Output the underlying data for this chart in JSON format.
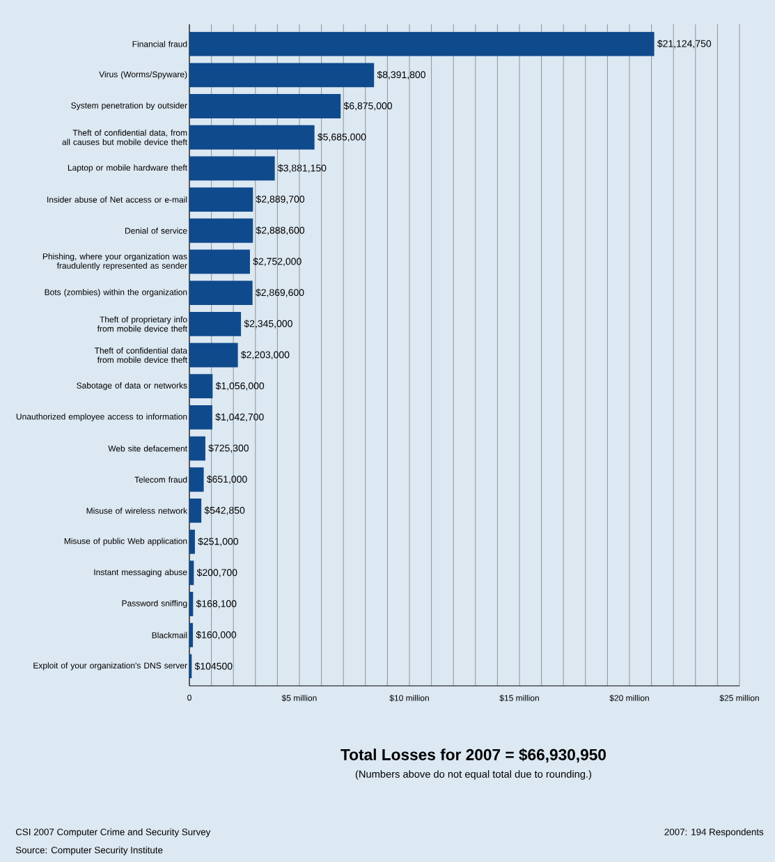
{
  "chart_data": {
    "type": "bar",
    "orientation": "horizontal",
    "categories": [
      "Financial fraud",
      "Virus (Worms/Spyware)",
      "System penetration by outsider",
      "Theft of confidential data, from all causes but mobile device theft",
      "Laptop or mobile hardware theft",
      "Insider abuse of Net access or e-mail",
      "Denial of service",
      "Phishing, where your organization was fraudulently represented as sender",
      "Bots (zombies) within the organization",
      "Theft of proprietary info from mobile device theft",
      "Theft of confidential data from mobile device theft",
      "Sabotage of data or networks",
      "Unauthorized employee access to information",
      "Web site defacement",
      "Telecom fraud",
      "Misuse of wireless network",
      "Misuse of public Web application",
      "Instant messaging abuse",
      "Password sniffing",
      "Blackmail",
      "Exploit of your organization's DNS server"
    ],
    "values": [
      21124750,
      8391800,
      6875000,
      5685000,
      3881150,
      2889700,
      2888600,
      2752000,
      2869600,
      2345000,
      2203000,
      1056000,
      1042700,
      725300,
      651000,
      542850,
      251000,
      200700,
      168100,
      160000,
      104500
    ],
    "value_labels": [
      "$21,124,750",
      "$8,391,800",
      "$6,875,000",
      "$5,685,000",
      "$3,881,150",
      "$2,889,700",
      "$2,888,600",
      "$2,752,000",
      "$2,869,600",
      "$2,345,000",
      "$2,203,000",
      "$1,056,000",
      "$1,042,700",
      "$725,300",
      "$651,000",
      "$542,850",
      "$251,000",
      "$200,700",
      "$168,100",
      "$160,000",
      "$104500"
    ],
    "color": "#0f4a8c",
    "xlim": [
      0,
      25000000
    ],
    "xticks": [
      0,
      {
        "value": 1000000,
        "label": null
      },
      {
        "value": 2000000,
        "label": null
      },
      {
        "value": 3000000,
        "label": null
      },
      {
        "value": 4000000,
        "label": null
      },
      {
        "value": 5000000,
        "label": "$5 million"
      },
      {
        "value": 6000000,
        "label": null
      },
      {
        "value": 7000000,
        "label": null
      },
      {
        "value": 8000000,
        "label": null
      },
      {
        "value": 9000000,
        "label": null
      },
      {
        "value": 10000000,
        "label": "$10 million"
      },
      {
        "value": 11000000,
        "label": null
      },
      {
        "value": 12000000,
        "label": null
      },
      {
        "value": 13000000,
        "label": null
      },
      {
        "value": 14000000,
        "label": null
      },
      {
        "value": 15000000,
        "label": "$15 million"
      },
      {
        "value": 16000000,
        "label": null
      },
      {
        "value": 17000000,
        "label": null
      },
      {
        "value": 18000000,
        "label": null
      },
      {
        "value": 19000000,
        "label": null
      },
      {
        "value": 20000000,
        "label": "$20 million"
      },
      {
        "value": 21000000,
        "label": null
      },
      {
        "value": 22000000,
        "label": null
      },
      {
        "value": 23000000,
        "label": null
      },
      {
        "value": 24000000,
        "label": null
      },
      {
        "value": 25000000,
        "label": "$25 million"
      }
    ],
    "grid": "x",
    "annotations": [
      "Total Losses for 2007 = $66,930,950",
      "(Numbers above do not equal total due to rounding.)",
      "CSI 2007 Computer Crime and Security Survey",
      "Source: Computer Security Institute",
      "2007: 194 Respondents"
    ]
  }
}
